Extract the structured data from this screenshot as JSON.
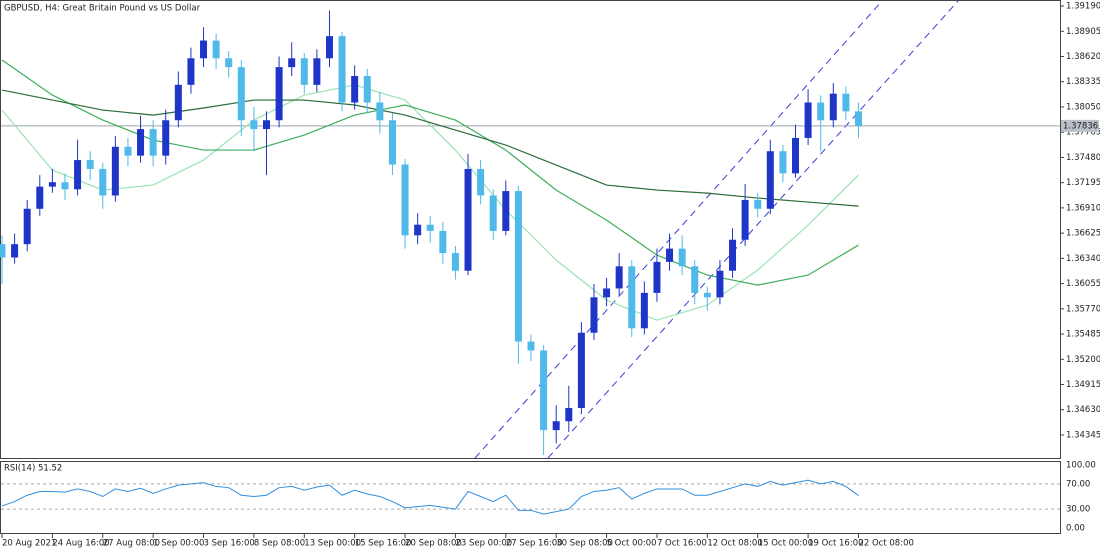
{
  "chart_data": [
    {
      "type": "candlestick",
      "title": "GBPUSD, H4:  Great Britain Pound vs US Dollar",
      "up_color": "#1f35c8",
      "down_color": "#4fb9ea",
      "xlim": [
        0,
        84
      ],
      "xticks": [
        {
          "value": 0,
          "label": "20 Aug 2021"
        },
        {
          "value": 4,
          "label": "24 Aug 16:00"
        },
        {
          "value": 8,
          "label": "27 Aug 08:00"
        },
        {
          "value": 12,
          "label": "1 Sep 00:00"
        },
        {
          "value": 16,
          "label": "3 Sep 16:00"
        },
        {
          "value": 20,
          "label": "8 Sep 08:00"
        },
        {
          "value": 24,
          "label": "13 Sep 00:00"
        },
        {
          "value": 28,
          "label": "15 Sep 16:00"
        },
        {
          "value": 32,
          "label": "20 Sep 08:00"
        },
        {
          "value": 36,
          "label": "23 Sep 00:00"
        },
        {
          "value": 40,
          "label": "27 Sep 16:00"
        },
        {
          "value": 44,
          "label": "30 Sep 08:00"
        },
        {
          "value": 48,
          "label": "5 Oct 00:00"
        },
        {
          "value": 52,
          "label": "7 Oct 16:00"
        },
        {
          "value": 56,
          "label": "12 Oct 08:00"
        },
        {
          "value": 60,
          "label": "15 Oct 00:00"
        },
        {
          "value": 64,
          "label": "19 Oct 16:00"
        },
        {
          "value": 68,
          "label": "22 Oct 08:00"
        }
      ],
      "ylim": [
        1.34085,
        1.39258
      ],
      "yticks": [
        {
          "value": 1.3919,
          "label": "1.39190"
        },
        1.38905,
        {
          "value": 1.3862,
          "label": "1.38620"
        },
        1.38335,
        {
          "value": 1.3805,
          "label": "1.38050"
        },
        1.37765,
        {
          "value": 1.3748,
          "label": "1.37480"
        },
        1.37195,
        {
          "value": 1.3691,
          "label": "1.36910"
        },
        1.36625,
        {
          "value": 1.3634,
          "label": "1.36340"
        },
        1.36055,
        {
          "value": 1.3577,
          "label": "1.35770"
        },
        1.35485,
        {
          "value": 1.352,
          "label": "1.35200"
        },
        1.34915,
        {
          "value": 1.3463,
          "label": "1.34630"
        },
        1.34345
      ],
      "last_price": 1.37836,
      "open": [
        1.365,
        1.3635,
        1.365,
        1.369,
        1.3715,
        1.372,
        1.3712,
        1.3745,
        1.3735,
        1.3705,
        1.376,
        1.375,
        1.378,
        1.375,
        1.379,
        1.383,
        1.386,
        1.388,
        1.386,
        1.385,
        1.379,
        1.378,
        1.379,
        1.385,
        1.386,
        1.383,
        1.386,
        1.3885,
        1.381,
        1.384,
        1.381,
        1.379,
        1.374,
        1.366,
        1.3672,
        1.3665,
        1.364,
        1.362,
        1.3735,
        1.3705,
        1.3665,
        1.371,
        1.354,
        1.353,
        1.344,
        1.345,
        1.3465,
        1.355,
        1.359,
        1.36,
        1.3625,
        1.3555,
        1.3595,
        1.363,
        1.3645,
        1.3625,
        1.3595,
        1.359,
        1.362,
        1.3655,
        1.37,
        1.369,
        1.3755,
        1.373,
        1.377,
        1.381,
        1.379,
        1.382,
        1.38
      ],
      "high": [
        1.366,
        1.3662,
        1.37,
        1.3728,
        1.3735,
        1.373,
        1.3768,
        1.3755,
        1.3742,
        1.3772,
        1.377,
        1.3795,
        1.379,
        1.3802,
        1.3845,
        1.3872,
        1.3895,
        1.3888,
        1.3868,
        1.3858,
        1.3805,
        1.38,
        1.3862,
        1.3878,
        1.3866,
        1.387,
        1.3914,
        1.389,
        1.3852,
        1.3848,
        1.3822,
        1.3798,
        1.3746,
        1.3685,
        1.3682,
        1.3675,
        1.3648,
        1.3752,
        1.3745,
        1.3712,
        1.3722,
        1.3716,
        1.3548,
        1.3536,
        1.3468,
        1.349,
        1.3562,
        1.3605,
        1.3612,
        1.364,
        1.3632,
        1.3608,
        1.3645,
        1.3662,
        1.366,
        1.3632,
        1.3602,
        1.3632,
        1.3668,
        1.3718,
        1.3708,
        1.3768,
        1.3762,
        1.3785,
        1.3825,
        1.3818,
        1.3832,
        1.3828,
        1.381
      ],
      "low": [
        1.3605,
        1.3628,
        1.3642,
        1.3682,
        1.3708,
        1.37,
        1.3705,
        1.3722,
        1.369,
        1.3698,
        1.3738,
        1.3742,
        1.3738,
        1.374,
        1.3782,
        1.382,
        1.385,
        1.3848,
        1.3838,
        1.3772,
        1.3755,
        1.3728,
        1.3782,
        1.384,
        1.382,
        1.3822,
        1.385,
        1.38,
        1.3802,
        1.3798,
        1.3775,
        1.3728,
        1.3645,
        1.365,
        1.3652,
        1.3628,
        1.361,
        1.3615,
        1.3695,
        1.3655,
        1.366,
        1.3515,
        1.3518,
        1.3412,
        1.3425,
        1.3438,
        1.3458,
        1.3542,
        1.358,
        1.3592,
        1.3545,
        1.3548,
        1.3585,
        1.362,
        1.3615,
        1.3582,
        1.3575,
        1.3582,
        1.3612,
        1.3648,
        1.368,
        1.3684,
        1.372,
        1.3725,
        1.3762,
        1.3755,
        1.3782,
        1.379,
        1.377
      ],
      "close": [
        1.3635,
        1.365,
        1.369,
        1.3715,
        1.372,
        1.3712,
        1.3745,
        1.3735,
        1.3705,
        1.376,
        1.375,
        1.378,
        1.375,
        1.379,
        1.383,
        1.386,
        1.388,
        1.386,
        1.385,
        1.379,
        1.378,
        1.379,
        1.385,
        1.386,
        1.383,
        1.386,
        1.3885,
        1.381,
        1.384,
        1.381,
        1.379,
        1.374,
        1.366,
        1.3672,
        1.3665,
        1.364,
        1.362,
        1.3735,
        1.3705,
        1.3665,
        1.371,
        1.354,
        1.353,
        1.344,
        1.345,
        1.3465,
        1.355,
        1.359,
        1.36,
        1.3625,
        1.3555,
        1.3595,
        1.363,
        1.3645,
        1.3625,
        1.3595,
        1.359,
        1.362,
        1.3655,
        1.37,
        1.369,
        1.3755,
        1.373,
        1.377,
        1.381,
        1.379,
        1.382,
        1.38,
        1.37836
      ],
      "series": [
        {
          "color": "#9be3b3",
          "values": [
            1.38015,
            1.37337,
            1.37111,
            1.37168,
            1.3745,
            1.37902,
            1.38184,
            1.38298,
            1.38128,
            1.37563,
            1.36885,
            1.3632,
            1.35868,
            1.35642,
            1.35812,
            1.36207,
            1.36716,
            1.37281
          ]
        },
        {
          "color": "#3fae5c",
          "values": [
            1.3858,
            1.38184,
            1.37902,
            1.37676,
            1.37563,
            1.37563,
            1.37733,
            1.37958,
            1.38072,
            1.37902,
            1.37563,
            1.37111,
            1.36772,
            1.36377,
            1.36151,
            1.36038,
            1.36151,
            1.3649
          ]
        },
        {
          "color": "#2c6b3a",
          "values": [
            1.38241,
            1.38128,
            1.38015,
            1.37958,
            1.38038,
            1.38128,
            1.38128,
            1.38072,
            1.37958,
            1.37789,
            1.3762,
            1.37394,
            1.37168,
            1.37111,
            1.37077,
            1.37021,
            1.36976,
            1.3693
          ]
        }
      ]
    },
    {
      "type": "line",
      "title": "RSI(14) 51.52",
      "color": "#2f8fe0",
      "xlim": [
        0,
        84
      ],
      "ylim": [
        0,
        100
      ],
      "yticks": [
        {
          "value": 100,
          "label": "100.00"
        },
        {
          "value": 70,
          "label": "70.00"
        },
        {
          "value": 30,
          "label": "30.00"
        },
        {
          "value": 0,
          "label": "0.00"
        }
      ],
      "values": [
        35,
        42,
        52,
        58,
        58,
        57,
        62,
        58,
        50,
        62,
        58,
        63,
        55,
        62,
        68,
        70,
        72,
        66,
        64,
        52,
        50,
        52,
        64,
        66,
        60,
        65,
        68,
        52,
        60,
        54,
        50,
        42,
        32,
        34,
        36,
        33,
        30,
        58,
        50,
        42,
        52,
        28,
        28,
        22,
        26,
        30,
        50,
        58,
        60,
        64,
        46,
        55,
        62,
        62,
        62,
        52,
        52,
        58,
        64,
        70,
        66,
        74,
        68,
        72,
        76,
        70,
        74,
        66,
        51.52
      ]
    }
  ]
}
